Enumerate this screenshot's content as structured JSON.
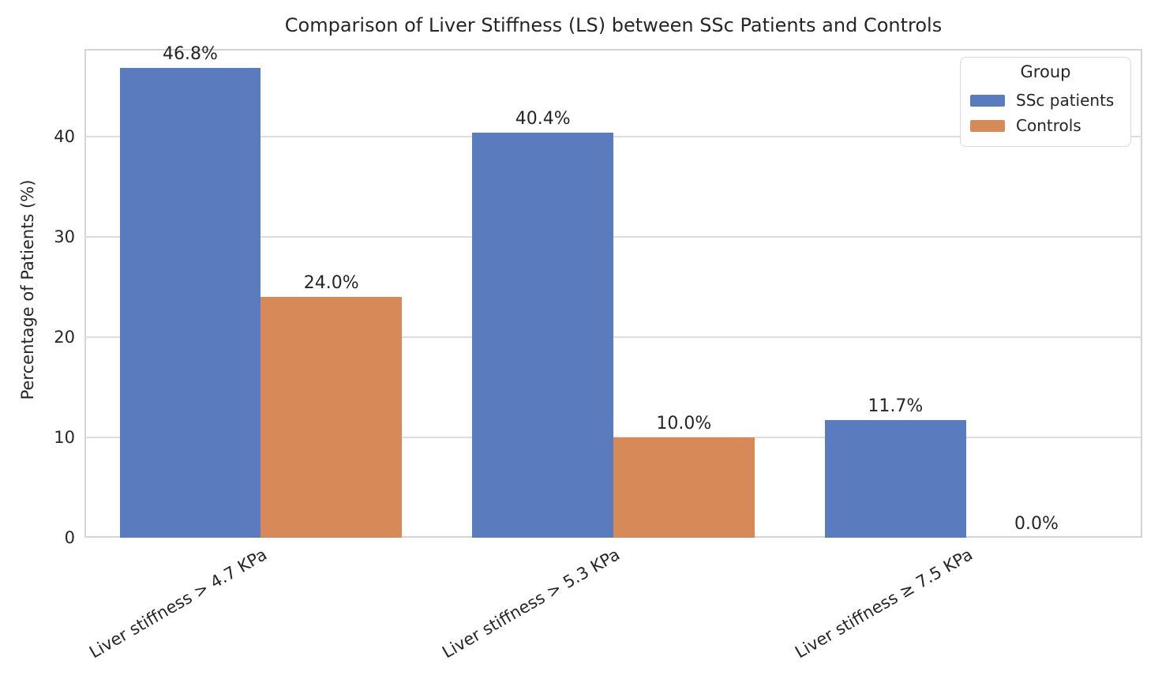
{
  "chart_data": {
    "type": "bar",
    "title": "Comparison of Liver Stiffness (LS) between SSc Patients and Controls",
    "xlabel": "",
    "ylabel": "Percentage of Patients (%)",
    "categories": [
      "Liver stiffness > 4.7 KPa",
      "Liver stiffness > 5.3 KPa",
      "Liver stiffness ≥ 7.5 KPa"
    ],
    "series": [
      {
        "name": "SSc patients",
        "color": "#5a7cbe",
        "values": [
          46.8,
          40.4,
          11.7
        ],
        "labels": [
          "46.8%",
          "40.4%",
          "11.7%"
        ]
      },
      {
        "name": "Controls",
        "color": "#d78a58",
        "values": [
          24.0,
          10.0,
          0.0
        ],
        "labels": [
          "24.0%",
          "10.0%",
          "0.0%"
        ]
      }
    ],
    "ylim": [
      0,
      48.7
    ],
    "yticks": [
      0,
      10,
      20,
      30,
      40
    ],
    "grid": "horizontal",
    "legend": {
      "title": "Group",
      "position": "upper right"
    }
  }
}
